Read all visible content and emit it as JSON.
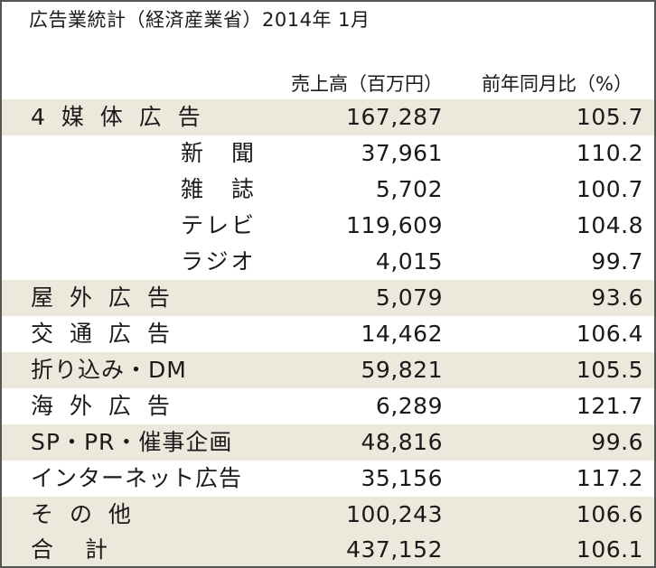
{
  "title": "広告業統計（経済産業省）2014年 1月",
  "headers": {
    "sales": "売上高（百万円）",
    "yoy": "前年同月比（%）"
  },
  "rows": [
    {
      "name": "4 媒 体 広 告",
      "sales": "167,287",
      "yoy": "105.7"
    },
    {
      "name": "新　聞",
      "sales": "37,961",
      "yoy": "110.2"
    },
    {
      "name": "雑　誌",
      "sales": "5,702",
      "yoy": "100.7"
    },
    {
      "name": "テレビ",
      "sales": "119,609",
      "yoy": "104.8"
    },
    {
      "name": "ラジオ",
      "sales": "4,015",
      "yoy": "99.7"
    },
    {
      "name": "屋 外 広 告",
      "sales": "5,079",
      "yoy": "93.6"
    },
    {
      "name": "交 通 広 告",
      "sales": "14,462",
      "yoy": "106.4"
    },
    {
      "name": "折り込み・DM",
      "sales": "59,821",
      "yoy": "105.5"
    },
    {
      "name": "海 外 広 告",
      "sales": "6,289",
      "yoy": "121.7"
    },
    {
      "name": "SP・PR・催事企画",
      "sales": "48,816",
      "yoy": "99.6"
    },
    {
      "name": "インターネット広告",
      "sales": "35,156",
      "yoy": "117.2"
    },
    {
      "name": "そ の 他",
      "sales": "100,243",
      "yoy": "106.6"
    },
    {
      "name": "合　計",
      "sales": "437,152",
      "yoy": "106.1"
    }
  ]
}
